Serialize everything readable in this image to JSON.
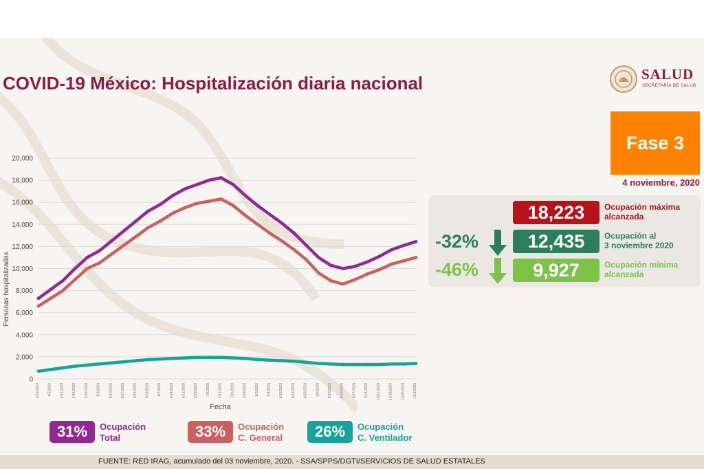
{
  "title": "COVID-19 México: Hospitalización diaria nacional",
  "logo": {
    "name": "SALUD",
    "subtitle": "SECRETARÍA DE SALUD"
  },
  "phase": "Fase 3",
  "date": "4 noviembre, 2020",
  "stats": [
    {
      "value": "18,223",
      "label": "Ocupación máxima\nalcanzada",
      "change": "",
      "color": "#b5121b",
      "label_color": "#b5121b"
    },
    {
      "value": "12,435",
      "label": "Ocupación al\n3 noviembre 2020",
      "change": "-32%",
      "color": "#2e7d5b",
      "label_color": "#2e7d5b"
    },
    {
      "value": "9,927",
      "label": "Ocupación mínima\nalcanzada",
      "change": "-46%",
      "color": "#7fc24a",
      "label_color": "#7fc24a"
    }
  ],
  "legend": [
    {
      "pct": "31%",
      "label": "Ocupación\nTotal",
      "color": "#8e2a92"
    },
    {
      "pct": "33%",
      "label": "Ocupación\nC. General",
      "color": "#c96161"
    },
    {
      "pct": "26%",
      "label": "Ocupación\nC. Ventilador",
      "color": "#17a39a"
    }
  ],
  "footer": "FUENTE: RED IRAG, acumulado del 03 noviembre, 2020. -  SSA/SPPS/DGTI/SERVICIOS DE SALUD ESTATALES",
  "chart_data": {
    "type": "line",
    "xlabel": "Fecha",
    "ylabel": "Personas hospitalizadas",
    "ylim": [
      0,
      20000
    ],
    "yticks": [
      "0",
      "2,000",
      "4,000",
      "6,000",
      "8,000",
      "10,000",
      "12,000",
      "14,000",
      "16,000",
      "18,000",
      "20,000"
    ],
    "x": [
      "3/29/2020",
      "4/5/2020",
      "4/12/2020",
      "4/19/2020",
      "4/26/2020",
      "5/3/2020",
      "5/10/2020",
      "5/17/2020",
      "5/24/2020",
      "5/31/2020",
      "6/7/2020",
      "6/14/2020",
      "6/21/2020",
      "6/28/2020",
      "7/5/2020",
      "7/12/2020",
      "7/19/2020",
      "7/26/2020",
      "8/2/2020",
      "8/9/2020",
      "8/16/2020",
      "8/23/2020",
      "8/30/2020",
      "9/6/2020",
      "9/13/2020",
      "9/20/2020",
      "9/27/2020",
      "10/4/2020",
      "10/11/2020",
      "10/18/2020",
      "10/25/2020",
      "11/3/2020"
    ],
    "series": [
      {
        "name": "Ocupación Total",
        "color": "#8e2a92",
        "values": [
          7300,
          8100,
          8900,
          10000,
          11000,
          11600,
          12500,
          13400,
          14300,
          15200,
          15800,
          16600,
          17200,
          17600,
          18000,
          18223,
          17600,
          16600,
          15700,
          14900,
          14100,
          13200,
          12100,
          11000,
          10300,
          10000,
          10200,
          10600,
          11100,
          11700,
          12100,
          12435
        ]
      },
      {
        "name": "Ocupación C. General",
        "color": "#c96161",
        "values": [
          6600,
          7300,
          8000,
          9000,
          10000,
          10500,
          11300,
          12100,
          12900,
          13700,
          14300,
          15000,
          15500,
          15900,
          16100,
          16300,
          15700,
          14800,
          14000,
          13200,
          12500,
          11700,
          10800,
          9600,
          8900,
          8600,
          9000,
          9500,
          9900,
          10400,
          10700,
          11000
        ]
      },
      {
        "name": "Ocupación C. Ventilador",
        "color": "#17a39a",
        "values": [
          700,
          850,
          1000,
          1150,
          1250,
          1350,
          1450,
          1550,
          1650,
          1750,
          1800,
          1850,
          1900,
          1950,
          1950,
          1950,
          1900,
          1850,
          1750,
          1700,
          1650,
          1600,
          1500,
          1400,
          1350,
          1300,
          1300,
          1300,
          1300,
          1350,
          1350,
          1400
        ]
      }
    ]
  }
}
